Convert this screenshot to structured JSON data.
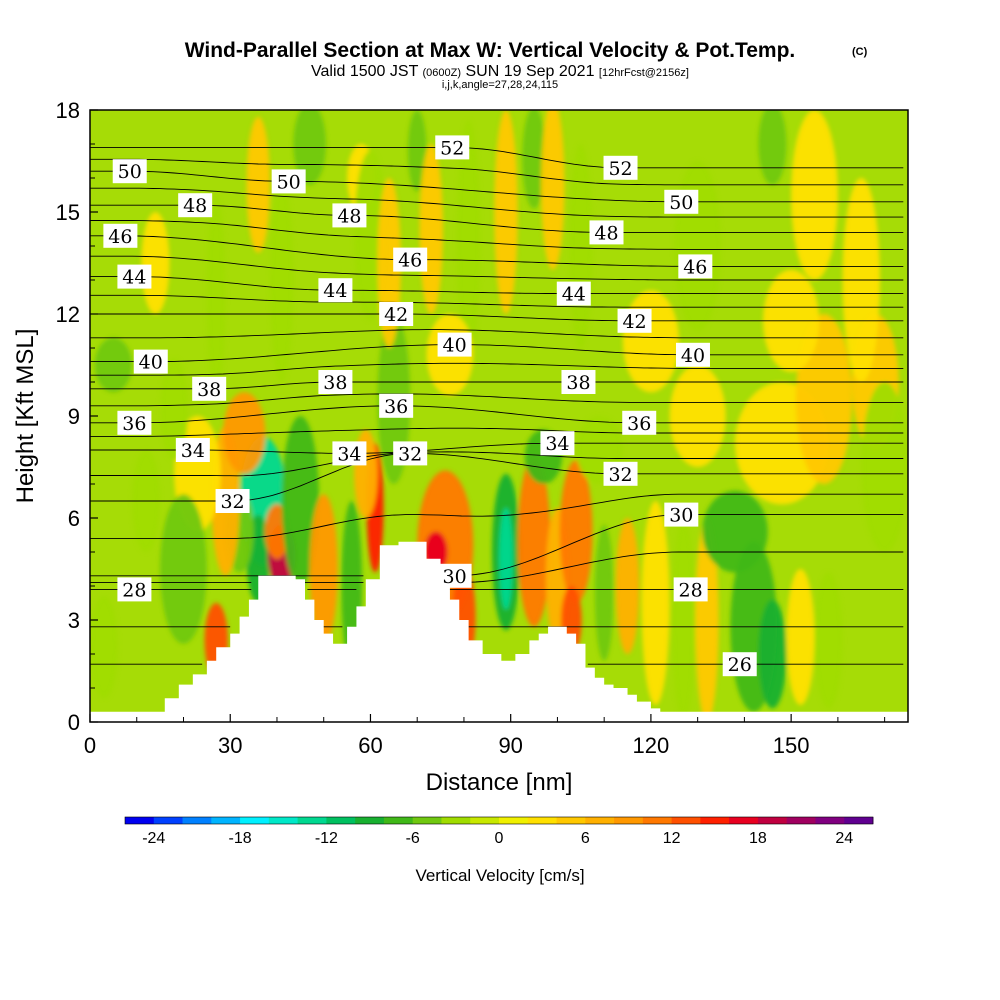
{
  "chart_data": {
    "type": "heatmap",
    "title": "Wind-Parallel Section at Max W: Vertical Velocity & Pot.Temp.",
    "title_mark": "(C)",
    "subtitle": {
      "valid": "Valid 1500 JST",
      "utc": "(0600Z)",
      "date": "SUN 19 Sep 2021",
      "fcst": "[12hrFcst@2156z]"
    },
    "params": "i,j,k,angle=27,28,24,115",
    "xlabel": "Distance [nm]",
    "ylabel": "Height [Kft MSL]",
    "xlim": [
      0,
      175
    ],
    "ylim": [
      0,
      18
    ],
    "x_ticks": [
      "0",
      "30",
      "60",
      "90",
      "120",
      "150"
    ],
    "x_tick_values": [
      0,
      30,
      60,
      90,
      120,
      150
    ],
    "y_ticks": [
      "0",
      "3",
      "6",
      "9",
      "12",
      "15",
      "18"
    ],
    "y_tick_values": [
      0,
      3,
      6,
      9,
      12,
      15,
      18
    ],
    "colorbar": {
      "label": "Vertical Velocity [cm/s]",
      "ticks": [
        "-24",
        "-18",
        "-12",
        "-6",
        "0",
        "6",
        "12",
        "18",
        "24"
      ],
      "tick_values": [
        -24,
        -18,
        -12,
        -6,
        0,
        6,
        12,
        18,
        24
      ],
      "range": [
        -26,
        26
      ],
      "colors": [
        "#0000f0",
        "#0040ff",
        "#0080ff",
        "#00b4ff",
        "#00f0ff",
        "#00e8c8",
        "#00d890",
        "#00c060",
        "#18b030",
        "#40b818",
        "#70c810",
        "#a0dc00",
        "#c8e800",
        "#f0f000",
        "#ffe000",
        "#ffc800",
        "#ffb000",
        "#ff9800",
        "#ff7800",
        "#ff5000",
        "#ff2000",
        "#e80020",
        "#c00040",
        "#a00060",
        "#800080",
        "#600090"
      ]
    },
    "isentrope_labels": [
      {
        "value": "50",
        "x": 8.5,
        "y": 16.2
      },
      {
        "value": "50",
        "x": 42.5,
        "y": 15.9
      },
      {
        "value": "52",
        "x": 77.5,
        "y": 16.9
      },
      {
        "value": "52",
        "x": 113.5,
        "y": 16.3
      },
      {
        "value": "48",
        "x": 22.5,
        "y": 15.2
      },
      {
        "value": "48",
        "x": 55.5,
        "y": 14.9
      },
      {
        "value": "48",
        "x": 110.5,
        "y": 14.4
      },
      {
        "value": "50",
        "x": 126.5,
        "y": 15.3
      },
      {
        "value": "46",
        "x": 6.5,
        "y": 14.3
      },
      {
        "value": "46",
        "x": 68.5,
        "y": 13.6
      },
      {
        "value": "46",
        "x": 129.5,
        "y": 13.4
      },
      {
        "value": "44",
        "x": 9.5,
        "y": 13.1
      },
      {
        "value": "44",
        "x": 52.5,
        "y": 12.7
      },
      {
        "value": "44",
        "x": 103.5,
        "y": 12.6
      },
      {
        "value": "42",
        "x": 65.5,
        "y": 12.0
      },
      {
        "value": "42",
        "x": 116.5,
        "y": 11.8
      },
      {
        "value": "40",
        "x": 13.0,
        "y": 10.6
      },
      {
        "value": "40",
        "x": 78.0,
        "y": 11.1
      },
      {
        "value": "40",
        "x": 129.0,
        "y": 10.8
      },
      {
        "value": "38",
        "x": 25.5,
        "y": 9.8
      },
      {
        "value": "38",
        "x": 52.5,
        "y": 10.0
      },
      {
        "value": "38",
        "x": 104.5,
        "y": 10.0
      },
      {
        "value": "36",
        "x": 9.5,
        "y": 8.8
      },
      {
        "value": "36",
        "x": 65.5,
        "y": 9.3
      },
      {
        "value": "36",
        "x": 117.5,
        "y": 8.8
      },
      {
        "value": "34",
        "x": 22.0,
        "y": 8.0
      },
      {
        "value": "34",
        "x": 55.5,
        "y": 7.9
      },
      {
        "value": "34",
        "x": 100.0,
        "y": 8.2
      },
      {
        "value": "32",
        "x": 30.5,
        "y": 6.5
      },
      {
        "value": "32",
        "x": 68.5,
        "y": 7.9
      },
      {
        "value": "32",
        "x": 113.5,
        "y": 7.3
      },
      {
        "value": "30",
        "x": 126.5,
        "y": 6.1
      },
      {
        "value": "30",
        "x": 78.0,
        "y": 4.3
      },
      {
        "value": "28",
        "x": 9.5,
        "y": 3.9
      },
      {
        "value": "28",
        "x": 128.5,
        "y": 3.9
      },
      {
        "value": "26",
        "x": 139.0,
        "y": 1.7
      }
    ],
    "terrain_profile": [
      [
        0,
        0.3
      ],
      [
        15,
        0.3
      ],
      [
        16,
        0.7
      ],
      [
        19,
        1.1
      ],
      [
        22,
        1.4
      ],
      [
        25,
        1.8
      ],
      [
        27,
        2.2
      ],
      [
        30,
        2.6
      ],
      [
        32,
        3.1
      ],
      [
        34,
        3.6
      ],
      [
        36,
        4.3
      ],
      [
        40,
        4.3
      ],
      [
        44,
        4.2
      ],
      [
        46,
        3.6
      ],
      [
        48,
        3.0
      ],
      [
        50,
        2.6
      ],
      [
        52,
        2.3
      ],
      [
        54,
        2.3
      ],
      [
        55,
        2.8
      ],
      [
        57,
        3.4
      ],
      [
        59,
        4.2
      ],
      [
        62,
        5.2
      ],
      [
        66,
        5.3
      ],
      [
        70,
        5.3
      ],
      [
        72,
        4.8
      ],
      [
        75,
        4.2
      ],
      [
        77,
        3.6
      ],
      [
        79,
        3.0
      ],
      [
        81,
        2.4
      ],
      [
        84,
        2.0
      ],
      [
        88,
        1.8
      ],
      [
        91,
        2.0
      ],
      [
        94,
        2.4
      ],
      [
        96,
        2.6
      ],
      [
        98,
        2.8
      ],
      [
        100,
        2.8
      ],
      [
        102,
        2.6
      ],
      [
        104,
        2.3
      ],
      [
        106,
        1.6
      ],
      [
        108,
        1.3
      ],
      [
        110,
        1.1
      ],
      [
        112,
        1.0
      ],
      [
        115,
        0.8
      ],
      [
        117,
        0.6
      ],
      [
        120,
        0.4
      ],
      [
        122,
        0.3
      ],
      [
        175,
        0.3
      ]
    ],
    "velocity_features": [
      {
        "x": 37,
        "y": 6.5,
        "rx": 5,
        "ry": 1.9,
        "w": -14
      },
      {
        "x": 36,
        "y": 4.8,
        "rx": 2.5,
        "ry": 1.3,
        "w": -10
      },
      {
        "x": 32,
        "y": 5.6,
        "rx": 3,
        "ry": 1.2,
        "w": -6
      },
      {
        "x": 41,
        "y": 4.9,
        "rx": 3,
        "ry": 0.9,
        "w": 18
      },
      {
        "x": 40,
        "y": 5.6,
        "rx": 2.6,
        "ry": 0.8,
        "w": 10
      },
      {
        "x": 27,
        "y": 2.4,
        "rx": 2.5,
        "ry": 1.1,
        "w": 12
      },
      {
        "x": 29,
        "y": 6.5,
        "rx": 3,
        "ry": 2.2,
        "w": 6
      },
      {
        "x": 33,
        "y": 8.5,
        "rx": 4.5,
        "ry": 1.2,
        "w": 8
      },
      {
        "x": 23,
        "y": 7.3,
        "rx": 5,
        "ry": 1.7,
        "w": 4
      },
      {
        "x": 20,
        "y": 4.5,
        "rx": 5,
        "ry": 2.2,
        "w": -5
      },
      {
        "x": 45,
        "y": 6.5,
        "rx": 4,
        "ry": 2.5,
        "w": -8
      },
      {
        "x": 50,
        "y": 4.5,
        "rx": 3,
        "ry": 2.2,
        "w": 8
      },
      {
        "x": 56,
        "y": 4.0,
        "rx": 2.2,
        "ry": 2.5,
        "w": -8
      },
      {
        "x": 61,
        "y": 6.3,
        "rx": 1.8,
        "ry": 1.9,
        "w": 15
      },
      {
        "x": 59,
        "y": 7.3,
        "rx": 2.5,
        "ry": 1.3,
        "w": 6
      },
      {
        "x": 65,
        "y": 9.5,
        "rx": 3.5,
        "ry": 2.5,
        "w": -5
      },
      {
        "x": 76,
        "y": 5.2,
        "rx": 6,
        "ry": 2.2,
        "w": 10
      },
      {
        "x": 74,
        "y": 5.0,
        "rx": 2.5,
        "ry": 0.6,
        "w": 16
      },
      {
        "x": 80,
        "y": 3.1,
        "rx": 2.5,
        "ry": 1.5,
        "w": 12
      },
      {
        "x": 89,
        "y": 5.0,
        "rx": 3,
        "ry": 2.3,
        "w": -10
      },
      {
        "x": 89,
        "y": 4.8,
        "rx": 1.5,
        "ry": 1.5,
        "w": -13
      },
      {
        "x": 95,
        "y": 5.3,
        "rx": 3.5,
        "ry": 2.5,
        "w": 10
      },
      {
        "x": 100,
        "y": 4.3,
        "rx": 2.5,
        "ry": 2.0,
        "w": 6
      },
      {
        "x": 104,
        "y": 5.6,
        "rx": 3.5,
        "ry": 2.1,
        "w": 11
      },
      {
        "x": 103,
        "y": 3.0,
        "rx": 2.2,
        "ry": 1.0,
        "w": 13
      },
      {
        "x": 110,
        "y": 3.8,
        "rx": 2,
        "ry": 2.0,
        "w": -5
      },
      {
        "x": 115,
        "y": 4.0,
        "rx": 2.5,
        "ry": 2.0,
        "w": 6
      },
      {
        "x": 97,
        "y": 7.8,
        "rx": 4,
        "ry": 0.8,
        "w": -7
      },
      {
        "x": 109,
        "y": 8.0,
        "rx": 5,
        "ry": 1.0,
        "w": -4
      },
      {
        "x": 121,
        "y": 3.5,
        "rx": 3,
        "ry": 3.0,
        "w": 4
      },
      {
        "x": 127,
        "y": 3.0,
        "rx": 2.5,
        "ry": 3.0,
        "w": -4
      },
      {
        "x": 132,
        "y": 3.0,
        "rx": 2.5,
        "ry": 3.0,
        "w": 5
      },
      {
        "x": 138,
        "y": 5.6,
        "rx": 7,
        "ry": 1.2,
        "w": -7
      },
      {
        "x": 142,
        "y": 2.8,
        "rx": 5,
        "ry": 2.5,
        "w": -8
      },
      {
        "x": 146,
        "y": 2.0,
        "rx": 3,
        "ry": 1.6,
        "w": -10
      },
      {
        "x": 152,
        "y": 2.5,
        "rx": 3,
        "ry": 2.0,
        "w": 4
      },
      {
        "x": 158,
        "y": 2.4,
        "rx": 3,
        "ry": 2.0,
        "w": -3
      },
      {
        "x": 148,
        "y": 8.2,
        "rx": 10,
        "ry": 1.8,
        "w": 4
      },
      {
        "x": 157,
        "y": 9.5,
        "rx": 6,
        "ry": 2.5,
        "w": 5
      },
      {
        "x": 168,
        "y": 10.0,
        "rx": 5,
        "ry": 2.0,
        "w": 5
      },
      {
        "x": 170,
        "y": 7.5,
        "rx": 5,
        "ry": 2.5,
        "w": -4
      },
      {
        "x": 130,
        "y": 9.0,
        "rx": 6,
        "ry": 1.5,
        "w": 4
      },
      {
        "x": 5,
        "y": 10.5,
        "rx": 4,
        "ry": 0.8,
        "w": -5
      },
      {
        "x": 18,
        "y": 9.2,
        "rx": 3,
        "ry": 1.5,
        "w": -4
      },
      {
        "x": 47,
        "y": 17.0,
        "rx": 3.5,
        "ry": 1.2,
        "w": -6
      },
      {
        "x": 58,
        "y": 16.0,
        "rx": 3,
        "ry": 1.0,
        "w": 4
      },
      {
        "x": 60,
        "y": 14.3,
        "rx": 3.5,
        "ry": 2.5,
        "w": -4
      },
      {
        "x": 70,
        "y": 16.8,
        "rx": 2,
        "ry": 1.2,
        "w": -6
      },
      {
        "x": 64,
        "y": 13.5,
        "rx": 2.5,
        "ry": 2.5,
        "w": 5
      },
      {
        "x": 73,
        "y": 14.5,
        "rx": 2.5,
        "ry": 2.5,
        "w": 5
      },
      {
        "x": 81,
        "y": 14.2,
        "rx": 2.5,
        "ry": 3.5,
        "w": -4
      },
      {
        "x": 89,
        "y": 15.0,
        "rx": 2.5,
        "ry": 3.0,
        "w": 5
      },
      {
        "x": 95,
        "y": 16.6,
        "rx": 2.5,
        "ry": 1.5,
        "w": -6
      },
      {
        "x": 99,
        "y": 15.8,
        "rx": 2.5,
        "ry": 2.5,
        "w": 5
      },
      {
        "x": 105,
        "y": 14.0,
        "rx": 2.5,
        "ry": 3.0,
        "w": -4
      },
      {
        "x": 130,
        "y": 14.0,
        "rx": 5,
        "ry": 2.5,
        "w": -3
      },
      {
        "x": 146,
        "y": 17.0,
        "rx": 3,
        "ry": 1.2,
        "w": -5
      },
      {
        "x": 155,
        "y": 15.5,
        "rx": 5,
        "ry": 2.5,
        "w": 4
      },
      {
        "x": 165,
        "y": 13.0,
        "rx": 4,
        "ry": 3.0,
        "w": 4
      },
      {
        "x": 14,
        "y": 13.5,
        "rx": 3,
        "ry": 1.5,
        "w": 4
      },
      {
        "x": 36,
        "y": 15.8,
        "rx": 2.5,
        "ry": 2.0,
        "w": 5
      },
      {
        "x": 41,
        "y": 13.0,
        "rx": 2.5,
        "ry": 3.0,
        "w": -3
      },
      {
        "x": 27,
        "y": 12.5,
        "rx": 2,
        "ry": 3.0,
        "w": -3
      },
      {
        "x": 77,
        "y": 10.8,
        "rx": 5,
        "ry": 1.2,
        "w": 4
      },
      {
        "x": 120,
        "y": 11.2,
        "rx": 6,
        "ry": 1.5,
        "w": 4
      },
      {
        "x": 150,
        "y": 11.8,
        "rx": 6,
        "ry": 1.5,
        "w": 3
      },
      {
        "x": 3,
        "y": 2.2,
        "rx": 3,
        "ry": 1.5,
        "w": -3
      },
      {
        "x": 12,
        "y": 6.5,
        "rx": 3,
        "ry": 1.5,
        "w": -3
      }
    ]
  }
}
